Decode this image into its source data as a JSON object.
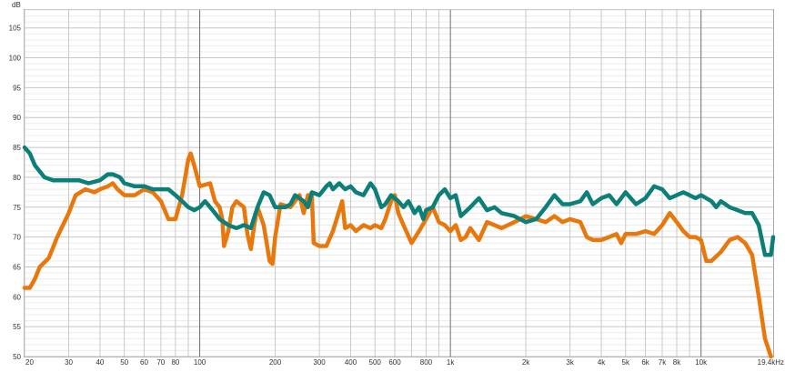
{
  "chart_data": {
    "type": "line",
    "title": "",
    "xlabel": "",
    "ylabel": "",
    "x_scale": "log",
    "x_unit": "kHz",
    "y_unit": "dB",
    "xlim": [
      20,
      19400
    ],
    "ylim": [
      50,
      108
    ],
    "grid": true,
    "legend": "none",
    "x_tick_labels": [
      {
        "value": 20,
        "label": "20"
      },
      {
        "value": 30,
        "label": "30"
      },
      {
        "value": 40,
        "label": "40"
      },
      {
        "value": 50,
        "label": "50"
      },
      {
        "value": 60,
        "label": "60"
      },
      {
        "value": 70,
        "label": "70"
      },
      {
        "value": 80,
        "label": "80"
      },
      {
        "value": 100,
        "label": "100"
      },
      {
        "value": 200,
        "label": "200"
      },
      {
        "value": 300,
        "label": "300"
      },
      {
        "value": 400,
        "label": "400"
      },
      {
        "value": 500,
        "label": "500"
      },
      {
        "value": 600,
        "label": "600"
      },
      {
        "value": 800,
        "label": "800"
      },
      {
        "value": 1000,
        "label": "1k"
      },
      {
        "value": 2000,
        "label": "2k"
      },
      {
        "value": 3000,
        "label": "3k"
      },
      {
        "value": 4000,
        "label": "4k"
      },
      {
        "value": 5000,
        "label": "5k"
      },
      {
        "value": 6000,
        "label": "6k"
      },
      {
        "value": 7000,
        "label": "7k"
      },
      {
        "value": 8000,
        "label": "8k"
      },
      {
        "value": 10000,
        "label": "10k"
      },
      {
        "value": 19400,
        "label": "19.4kHz"
      }
    ],
    "y_ticks": [
      50,
      55,
      60,
      65,
      70,
      75,
      80,
      85,
      90,
      95,
      100,
      105
    ],
    "series": [
      {
        "color": "#E8780C",
        "points": [
          [
            20,
            61.5
          ],
          [
            21,
            61.5
          ],
          [
            22,
            63
          ],
          [
            23,
            65
          ],
          [
            25,
            66.5
          ],
          [
            27,
            70
          ],
          [
            30,
            74
          ],
          [
            32,
            77
          ],
          [
            35,
            78
          ],
          [
            38,
            77.5
          ],
          [
            40,
            78
          ],
          [
            43,
            78.5
          ],
          [
            45,
            79
          ],
          [
            47,
            78
          ],
          [
            50,
            77
          ],
          [
            55,
            77
          ],
          [
            60,
            78
          ],
          [
            65,
            77.5
          ],
          [
            70,
            76
          ],
          [
            75,
            73
          ],
          [
            80,
            73
          ],
          [
            85,
            77
          ],
          [
            90,
            83
          ],
          [
            92,
            84
          ],
          [
            95,
            82
          ],
          [
            100,
            78.5
          ],
          [
            110,
            79
          ],
          [
            115,
            76
          ],
          [
            120,
            75
          ],
          [
            123,
            73
          ],
          [
            125,
            68.5
          ],
          [
            130,
            71
          ],
          [
            135,
            75
          ],
          [
            140,
            76
          ],
          [
            150,
            75
          ],
          [
            155,
            70.5
          ],
          [
            160,
            68
          ],
          [
            165,
            72
          ],
          [
            170,
            75
          ],
          [
            180,
            72
          ],
          [
            190,
            66
          ],
          [
            195,
            65.5
          ],
          [
            200,
            70
          ],
          [
            210,
            75.5
          ],
          [
            230,
            75
          ],
          [
            250,
            77
          ],
          [
            260,
            74
          ],
          [
            270,
            77
          ],
          [
            280,
            77
          ],
          [
            285,
            69
          ],
          [
            300,
            68.5
          ],
          [
            320,
            68.5
          ],
          [
            340,
            71
          ],
          [
            370,
            76
          ],
          [
            380,
            71.5
          ],
          [
            400,
            72
          ],
          [
            420,
            71
          ],
          [
            450,
            72
          ],
          [
            480,
            71.5
          ],
          [
            500,
            72
          ],
          [
            530,
            71.5
          ],
          [
            550,
            73
          ],
          [
            580,
            76
          ],
          [
            600,
            77
          ],
          [
            620,
            74
          ],
          [
            650,
            72
          ],
          [
            700,
            69
          ],
          [
            750,
            71
          ],
          [
            800,
            73
          ],
          [
            850,
            75
          ],
          [
            900,
            72.5
          ],
          [
            950,
            72
          ],
          [
            1000,
            71
          ],
          [
            1050,
            72
          ],
          [
            1100,
            69.5
          ],
          [
            1150,
            70
          ],
          [
            1200,
            71.5
          ],
          [
            1300,
            69.5
          ],
          [
            1400,
            72.5
          ],
          [
            1500,
            72
          ],
          [
            1600,
            71.5
          ],
          [
            1800,
            72.5
          ],
          [
            2000,
            73.5
          ],
          [
            2200,
            73
          ],
          [
            2400,
            72.5
          ],
          [
            2600,
            73.5
          ],
          [
            2800,
            72.5
          ],
          [
            3000,
            73
          ],
          [
            3300,
            72.5
          ],
          [
            3500,
            70
          ],
          [
            3700,
            69.5
          ],
          [
            4000,
            69.5
          ],
          [
            4300,
            70
          ],
          [
            4600,
            70.5
          ],
          [
            4800,
            69
          ],
          [
            5000,
            70.5
          ],
          [
            5500,
            70.5
          ],
          [
            6000,
            71
          ],
          [
            6500,
            70.5
          ],
          [
            7000,
            72
          ],
          [
            7500,
            74
          ],
          [
            8000,
            72.5
          ],
          [
            8500,
            71
          ],
          [
            9000,
            70
          ],
          [
            9500,
            70
          ],
          [
            10000,
            69.5
          ],
          [
            10500,
            66
          ],
          [
            11000,
            66
          ],
          [
            12000,
            67.5
          ],
          [
            13000,
            69.5
          ],
          [
            14000,
            70
          ],
          [
            15000,
            69
          ],
          [
            16000,
            67
          ],
          [
            17000,
            60
          ],
          [
            18000,
            53
          ],
          [
            19000,
            50
          ]
        ]
      },
      {
        "color": "#0C8078",
        "points": [
          [
            20,
            85
          ],
          [
            21,
            84
          ],
          [
            22,
            82
          ],
          [
            24,
            80
          ],
          [
            26,
            79.5
          ],
          [
            28,
            79.5
          ],
          [
            30,
            79.5
          ],
          [
            33,
            79.5
          ],
          [
            36,
            79
          ],
          [
            40,
            79.5
          ],
          [
            43,
            80.5
          ],
          [
            45,
            80.5
          ],
          [
            48,
            80
          ],
          [
            50,
            79
          ],
          [
            55,
            78.5
          ],
          [
            60,
            78.5
          ],
          [
            65,
            78
          ],
          [
            70,
            78
          ],
          [
            75,
            78
          ],
          [
            80,
            77
          ],
          [
            85,
            76
          ],
          [
            90,
            75
          ],
          [
            95,
            74.5
          ],
          [
            100,
            75
          ],
          [
            105,
            76
          ],
          [
            110,
            75
          ],
          [
            115,
            74
          ],
          [
            120,
            73
          ],
          [
            125,
            72.5
          ],
          [
            130,
            72
          ],
          [
            140,
            71.5
          ],
          [
            150,
            72
          ],
          [
            160,
            71.5
          ],
          [
            170,
            75
          ],
          [
            180,
            77.5
          ],
          [
            190,
            77
          ],
          [
            200,
            75
          ],
          [
            220,
            75
          ],
          [
            230,
            75.5
          ],
          [
            240,
            77
          ],
          [
            260,
            76
          ],
          [
            270,
            75
          ],
          [
            280,
            77.5
          ],
          [
            300,
            77
          ],
          [
            320,
            78.5
          ],
          [
            330,
            79
          ],
          [
            340,
            78
          ],
          [
            360,
            79
          ],
          [
            380,
            78
          ],
          [
            400,
            78.5
          ],
          [
            420,
            77.5
          ],
          [
            450,
            77
          ],
          [
            480,
            79
          ],
          [
            500,
            78
          ],
          [
            530,
            75
          ],
          [
            550,
            75.5
          ],
          [
            580,
            77
          ],
          [
            600,
            76.5
          ],
          [
            620,
            76
          ],
          [
            650,
            75
          ],
          [
            680,
            76
          ],
          [
            700,
            75
          ],
          [
            720,
            74
          ],
          [
            750,
            75
          ],
          [
            780,
            73
          ],
          [
            800,
            74.5
          ],
          [
            850,
            75
          ],
          [
            900,
            77
          ],
          [
            950,
            78
          ],
          [
            1000,
            76.5
          ],
          [
            1050,
            77
          ],
          [
            1100,
            73.5
          ],
          [
            1200,
            75
          ],
          [
            1300,
            76.5
          ],
          [
            1400,
            74.5
          ],
          [
            1500,
            75
          ],
          [
            1600,
            74
          ],
          [
            1800,
            73.5
          ],
          [
            2000,
            72.5
          ],
          [
            2200,
            73
          ],
          [
            2400,
            75
          ],
          [
            2600,
            77
          ],
          [
            2800,
            75.5
          ],
          [
            3000,
            75.5
          ],
          [
            3300,
            76
          ],
          [
            3500,
            77.5
          ],
          [
            3700,
            75.5
          ],
          [
            4000,
            76.5
          ],
          [
            4300,
            77
          ],
          [
            4600,
            75.5
          ],
          [
            4800,
            76.5
          ],
          [
            5000,
            77.5
          ],
          [
            5500,
            75.5
          ],
          [
            6000,
            76.5
          ],
          [
            6500,
            78.5
          ],
          [
            7000,
            78
          ],
          [
            7500,
            76.5
          ],
          [
            8000,
            77
          ],
          [
            8500,
            77.5
          ],
          [
            9000,
            77
          ],
          [
            9500,
            76.5
          ],
          [
            10000,
            77
          ],
          [
            10500,
            76.5
          ],
          [
            11000,
            76
          ],
          [
            11500,
            75
          ],
          [
            12000,
            76
          ],
          [
            12500,
            75.5
          ],
          [
            13000,
            75
          ],
          [
            14000,
            74.5
          ],
          [
            15000,
            74
          ],
          [
            16000,
            74
          ],
          [
            17000,
            72
          ],
          [
            18000,
            67
          ],
          [
            19000,
            67
          ],
          [
            19400,
            70
          ]
        ]
      }
    ]
  }
}
